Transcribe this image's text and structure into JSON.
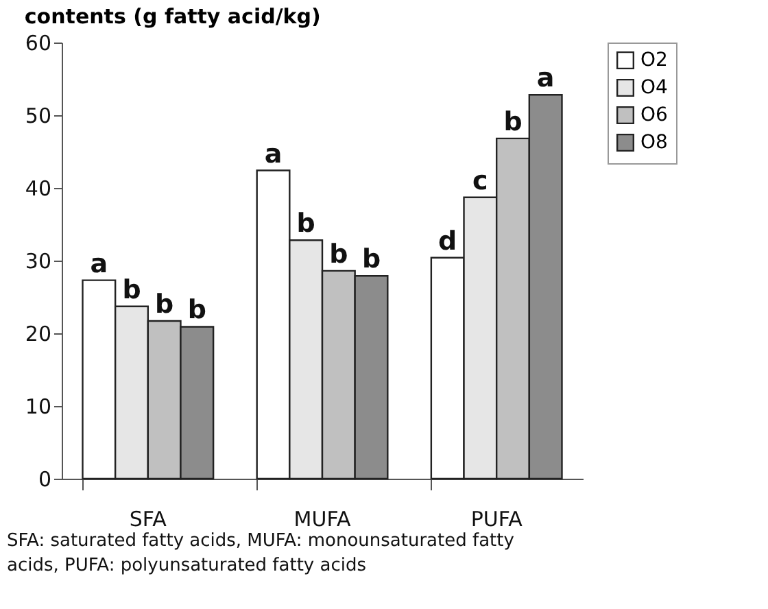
{
  "chart_data": {
    "type": "bar",
    "title": "contents (g fatty acid/kg)",
    "categories": [
      "SFA",
      "MUFA",
      "PUFA"
    ],
    "series": [
      {
        "name": "O2",
        "color": "#ffffff",
        "values": [
          27.3,
          42.4,
          30.4
        ],
        "value_labels": [
          "a",
          "a",
          "d"
        ]
      },
      {
        "name": "O4",
        "color": "#e6e6e6",
        "values": [
          23.7,
          32.8,
          38.7
        ],
        "value_labels": [
          "b",
          "b",
          "c"
        ]
      },
      {
        "name": "O6",
        "color": "#c0c0c0",
        "values": [
          21.7,
          28.6,
          46.8
        ],
        "value_labels": [
          "b",
          "b",
          "b"
        ]
      },
      {
        "name": "O8",
        "color": "#8c8c8c",
        "values": [
          20.9,
          27.9,
          52.8
        ],
        "value_labels": [
          "b",
          "b",
          "a"
        ]
      }
    ],
    "ylim": [
      0,
      60
    ],
    "yticks": [
      0,
      10,
      20,
      30,
      40,
      50,
      60
    ],
    "grid": false,
    "legend": "right",
    "annotations": [
      "SFA: saturated fatty acids, MUFA: monounsaturated fatty acids, PUFA: polyunsaturated fatty acids"
    ]
  }
}
